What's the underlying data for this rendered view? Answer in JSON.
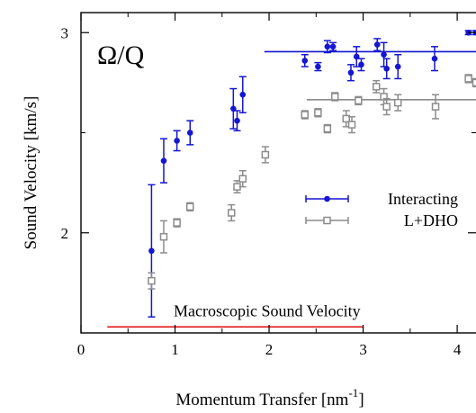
{
  "chart_data": {
    "type": "scatter",
    "title": "",
    "annotation": "Ω/Q",
    "xlabel": "Momentum Transfer  [nm",
    "xlabel_sup": "-1",
    "xlabel_tail": "]",
    "ylabel": "Sound Velocity  [km/s]",
    "xlim": [
      0,
      4.2
    ],
    "ylim": [
      1.5,
      3.1
    ],
    "xticks": [
      "0",
      "1",
      "2",
      "3",
      "4"
    ],
    "yticks": [
      "2",
      "3"
    ],
    "grid": false,
    "legend_position": "right",
    "series": [
      {
        "name": "Interacting",
        "color": "#1515d4",
        "marker": "filled-circle",
        "x": [
          0.75,
          0.88,
          1.02,
          1.16,
          1.62,
          1.66,
          1.72,
          2.38,
          2.52,
          2.62,
          2.68,
          2.87,
          2.93,
          2.98,
          3.15,
          3.22,
          3.25,
          3.37,
          3.76,
          4.12,
          4.2
        ],
        "y": [
          1.91,
          2.36,
          2.46,
          2.5,
          2.62,
          2.56,
          2.69,
          2.86,
          2.83,
          2.93,
          2.93,
          2.8,
          2.88,
          2.84,
          2.94,
          2.89,
          2.82,
          2.83,
          2.87,
          3.0,
          3.0
        ],
        "yerr": [
          0.33,
          0.11,
          0.05,
          0.06,
          0.1,
          0.05,
          0.09,
          0.03,
          0.02,
          0.03,
          0.02,
          0.04,
          0.05,
          0.03,
          0.03,
          0.06,
          0.05,
          0.06,
          0.06,
          0.01,
          0.01
        ]
      },
      {
        "name": "L+DHO",
        "color": "#8c8c8c",
        "marker": "open-square",
        "x": [
          0.75,
          0.88,
          1.02,
          1.16,
          1.6,
          1.66,
          1.72,
          1.96,
          2.38,
          2.52,
          2.62,
          2.7,
          2.82,
          2.88,
          2.95,
          3.14,
          3.22,
          3.25,
          3.37,
          3.77,
          4.12,
          4.2
        ],
        "y": [
          1.76,
          1.98,
          2.05,
          2.13,
          2.1,
          2.23,
          2.27,
          2.39,
          2.59,
          2.6,
          2.52,
          2.68,
          2.57,
          2.54,
          2.66,
          2.73,
          2.68,
          2.63,
          2.65,
          2.63,
          2.77,
          2.75
        ],
        "yerr": [
          0.04,
          0.08,
          0.02,
          0.02,
          0.04,
          0.03,
          0.04,
          0.04,
          0.02,
          0.02,
          0.02,
          0.02,
          0.04,
          0.04,
          0.02,
          0.03,
          0.04,
          0.04,
          0.04,
          0.06,
          0.02,
          0.02
        ]
      }
    ],
    "reference_lines": [
      {
        "series": "Interacting",
        "color": "#1515d4",
        "y": 2.905,
        "x": [
          1.95,
          4.2
        ]
      },
      {
        "series": "L+DHO",
        "color": "#8c8c8c",
        "y": 2.665,
        "x": [
          2.4,
          4.2
        ]
      },
      {
        "series": "Macroscopic Sound Velocity",
        "color": "#e01414",
        "y": 1.53,
        "x": [
          0.28,
          3.0
        ],
        "label": "Macroscopic Sound Velocity"
      }
    ]
  }
}
